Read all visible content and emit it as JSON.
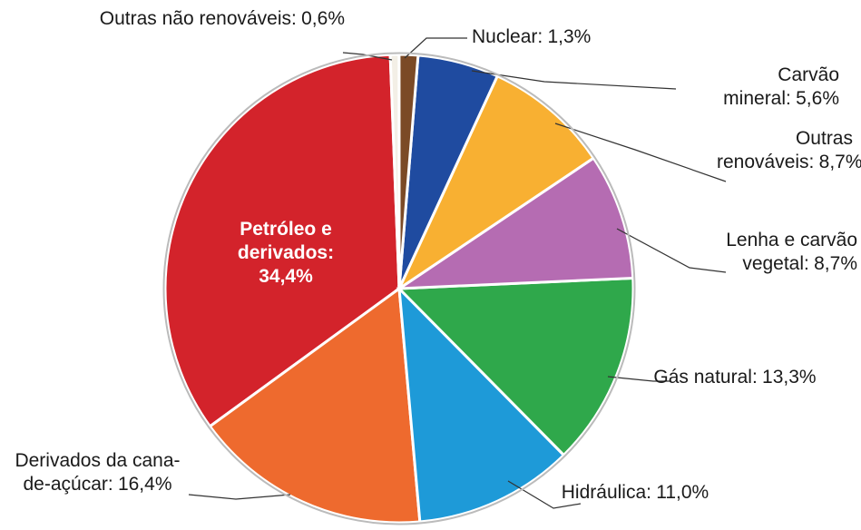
{
  "chart_data": {
    "type": "pie",
    "categories": [
      "Outras não renováveis:",
      "Nuclear:",
      "Carvão mineral:",
      "Outras renováveis:",
      "Lenha e carvão vegetal:",
      "Gás natural:",
      "Hidráulica:",
      "Derivados da cana-de-açúcar:",
      "Petróleo e derivados:"
    ],
    "values": [
      0.6,
      1.3,
      5.6,
      8.7,
      8.7,
      13.3,
      11.0,
      16.4,
      34.4
    ],
    "value_labels": [
      "0,6%",
      "1,3%",
      "5,6%",
      "8,7%",
      "8,7%",
      "13,3%",
      "11,0%",
      "16,4%",
      "34,4%"
    ],
    "colors": [
      "#f3efe6",
      "#7b4a26",
      "#1f4ba0",
      "#f8b032",
      "#b56cb2",
      "#2fa84b",
      "#1e9ad8",
      "#ee6a2e",
      "#d3232b"
    ]
  }
}
